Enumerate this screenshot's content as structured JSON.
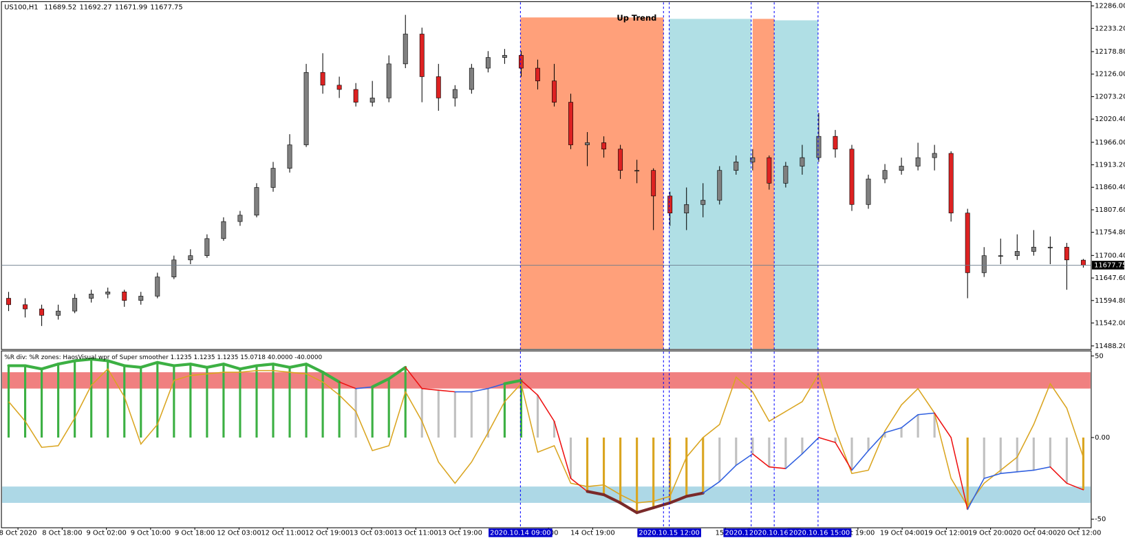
{
  "chart_data": {
    "type": "candlestick",
    "symbol": "US100,H1",
    "annotation": "Up Trend",
    "indicator_title": "%R div: %R zones:  HaosVisual wpr of Super smoother 1.1235 1.1235 1.1235 15.0718 40.0000 -40.0000",
    "up_color": "#808080",
    "down_color": "#dd2222",
    "candles": [
      [
        11600,
        11615,
        11570,
        11585
      ],
      [
        11585,
        11600,
        11555,
        11575
      ],
      [
        11575,
        11585,
        11535,
        11560
      ],
      [
        11560,
        11585,
        11550,
        11570
      ],
      [
        11570,
        11610,
        11565,
        11600
      ],
      [
        11600,
        11620,
        11590,
        11610
      ],
      [
        11610,
        11625,
        11600,
        11615
      ],
      [
        11615,
        11620,
        11580,
        11595
      ],
      [
        11595,
        11615,
        11585,
        11605
      ],
      [
        11605,
        11660,
        11600,
        11650
      ],
      [
        11650,
        11700,
        11645,
        11690
      ],
      [
        11690,
        11715,
        11680,
        11700
      ],
      [
        11700,
        11750,
        11695,
        11740
      ],
      [
        11740,
        11790,
        11735,
        11780
      ],
      [
        11780,
        11805,
        11770,
        11795
      ],
      [
        11795,
        11870,
        11790,
        11860
      ],
      [
        11860,
        11920,
        11850,
        11905
      ],
      [
        11905,
        11985,
        11895,
        11960
      ],
      [
        11960,
        12150,
        11955,
        12130
      ],
      [
        12130,
        12175,
        12080,
        12100
      ],
      [
        12100,
        12120,
        12070,
        12090
      ],
      [
        12090,
        12105,
        12050,
        12060
      ],
      [
        12060,
        12110,
        12050,
        12070
      ],
      [
        12070,
        12170,
        12060,
        12150
      ],
      [
        12150,
        12265,
        12140,
        12220
      ],
      [
        12220,
        12235,
        12060,
        12120
      ],
      [
        12120,
        12150,
        12040,
        12070
      ],
      [
        12070,
        12100,
        12050,
        12090
      ],
      [
        12090,
        12150,
        12080,
        12140
      ],
      [
        12140,
        12180,
        12130,
        12165
      ],
      [
        12165,
        12185,
        12150,
        12170
      ],
      [
        12170,
        12180,
        12120,
        12140
      ],
      [
        12140,
        12160,
        12090,
        12110
      ],
      [
        12110,
        12150,
        12050,
        12060
      ],
      [
        12060,
        12080,
        11950,
        11960
      ],
      [
        11960,
        11990,
        11910,
        11965
      ],
      [
        11965,
        11980,
        11930,
        11950
      ],
      [
        11950,
        11960,
        11880,
        11900
      ],
      [
        11900,
        11925,
        11870,
        11900
      ],
      [
        11900,
        11905,
        11760,
        11840
      ],
      [
        11840,
        11850,
        11770,
        11800
      ],
      [
        11800,
        11860,
        11760,
        11820
      ],
      [
        11820,
        11870,
        11790,
        11830
      ],
      [
        11830,
        11910,
        11820,
        11900
      ],
      [
        11900,
        11935,
        11890,
        11920
      ],
      [
        11920,
        11950,
        11900,
        11930
      ],
      [
        11930,
        11935,
        11855,
        11870
      ],
      [
        11870,
        11920,
        11860,
        11910
      ],
      [
        11910,
        11960,
        11890,
        11930
      ],
      [
        11930,
        12035,
        11920,
        11980
      ],
      [
        11980,
        11995,
        11930,
        11950
      ],
      [
        11950,
        11960,
        11805,
        11820
      ],
      [
        11820,
        11890,
        11810,
        11880
      ],
      [
        11880,
        11915,
        11870,
        11900
      ],
      [
        11900,
        11930,
        11890,
        11910
      ],
      [
        11910,
        11965,
        11900,
        11930
      ],
      [
        11930,
        11960,
        11900,
        11940
      ],
      [
        11940,
        11945,
        11780,
        11800
      ],
      [
        11800,
        11810,
        11600,
        11660
      ],
      [
        11660,
        11720,
        11650,
        11700
      ],
      [
        11700,
        11740,
        11680,
        11700
      ],
      [
        11700,
        11750,
        11690,
        11710
      ],
      [
        11710,
        11760,
        11700,
        11720
      ],
      [
        11720,
        11745,
        11680,
        11720
      ],
      [
        11720,
        11730,
        11620,
        11690
      ],
      [
        11689.52,
        11692.27,
        11671.99,
        11677.75
      ]
    ],
    "ylim": [
      11481.5,
      12294.4
    ],
    "yticks": [
      {
        "value": 12286,
        "label": "12286.00"
      },
      {
        "value": 12233.2,
        "label": "12233.20"
      },
      {
        "value": 12178.8,
        "label": "12178.80"
      },
      {
        "value": 12126,
        "label": "12126.00"
      },
      {
        "value": 12073.2,
        "label": "12073.20"
      },
      {
        "value": 12020.4,
        "label": "12020.40"
      },
      {
        "value": 11966,
        "label": "11966.00"
      },
      {
        "value": 11913.2,
        "label": "11913.20"
      },
      {
        "value": 11860.4,
        "label": "11860.40"
      },
      {
        "value": 11807.6,
        "label": "11807.60"
      },
      {
        "value": 11754.8,
        "label": "11754.80"
      },
      {
        "value": 11700.4,
        "label": "11700.40"
      },
      {
        "value": 11647.6,
        "label": "11647.60"
      },
      {
        "value": 11594.8,
        "label": "11594.80"
      },
      {
        "value": 11542,
        "label": "11542.00"
      },
      {
        "value": 11488.2,
        "label": "11488.20"
      }
    ],
    "x_labels": [
      "8 Oct 2020",
      "8 Oct 18:00",
      "9 Oct 02:00",
      "9 Oct 10:00",
      "9 Oct 18:00",
      "12 Oct 03:00",
      "12 Oct 11:00",
      "12 Oct 19:00",
      "13 Oct 03:00",
      "13 Oct 11:00",
      "13 Oct 19:00",
      null,
      "11:00",
      "14 Oct 19:00",
      null,
      null,
      "15 Oc",
      null,
      null,
      "Oct 19:00",
      "19 Oct 04:00",
      "19 Oct 12:00",
      "19 Oct 20:00",
      "20 Oct 04:00",
      "20 Oct 12:00"
    ],
    "time_markers": [
      "2020.10.14 09:00",
      "2020.10.15 12:00",
      "2020.1",
      "2020.10.16 07",
      "2020.10.16 15:00"
    ],
    "indicator": {
      "ylim": [
        -54.8,
        52.6
      ],
      "yticks": [
        50,
        {
          "value": 0,
          "label": "0.00"
        },
        -50
      ],
      "bands": [
        {
          "from": 30,
          "to": 40,
          "color": "#f08080"
        },
        {
          "from": -40,
          "to": -30,
          "color": "#add8e6"
        }
      ],
      "fast": {
        "color": "#daa520",
        "values": [
          22,
          10,
          -6,
          -5,
          12,
          32,
          42,
          25,
          -4,
          8,
          35,
          38,
          39,
          40,
          40,
          41,
          41,
          40,
          39,
          34,
          26,
          16,
          -8,
          -5,
          28,
          10,
          -15,
          -28,
          -15,
          3,
          22,
          33,
          -9,
          -5,
          -28,
          -30,
          -29,
          -35,
          -40,
          -39,
          -36,
          -12,
          0,
          8,
          37,
          28,
          10,
          16,
          22,
          39,
          5,
          -22,
          -20,
          4,
          20,
          30,
          15,
          -25,
          -42,
          -28,
          -20,
          -12,
          8,
          33,
          18,
          -12
        ]
      },
      "slow": {
        "rise_color": "#3060e0",
        "fall_color": "#ee1111",
        "high_color": "#3cb043",
        "low_color": "#7a2a2a",
        "values": [
          44,
          44,
          42,
          45,
          47,
          48,
          47,
          44,
          43,
          46,
          44,
          45,
          43,
          45,
          42,
          44,
          45,
          43,
          45,
          40,
          34,
          30,
          31,
          36,
          43,
          30,
          29,
          28,
          28,
          30,
          33,
          35,
          26,
          10,
          -25,
          -33,
          -35,
          -40,
          -46,
          -43,
          -40,
          -36,
          -34,
          -27,
          -17,
          -10,
          -18,
          -19,
          -10,
          0,
          -3,
          -20,
          -8,
          3,
          6,
          14,
          15,
          0,
          -44,
          -25,
          -22,
          -21,
          -20,
          -18,
          -28,
          -32
        ]
      }
    }
  }
}
